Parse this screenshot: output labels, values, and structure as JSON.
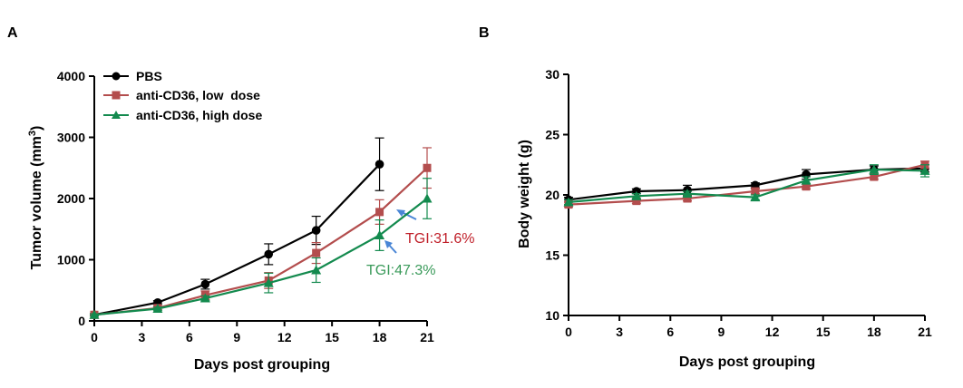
{
  "panels": [
    {
      "letter": "A",
      "xlabel": "Days post grouping",
      "ylabel": "Tumor volume (mm",
      "ylabel_sup": "3",
      "ylabel_close": ")",
      "legend": [
        {
          "label": "PBS"
        },
        {
          "label": "anti-CD36, low  dose"
        },
        {
          "label": "anti-CD36, high dose"
        }
      ],
      "annotations": [
        {
          "text": "TGI:31.6%",
          "color": "#c0202a"
        },
        {
          "text": "TGI:47.3%",
          "color": "#3a9a5a"
        }
      ]
    },
    {
      "letter": "B",
      "xlabel": "Days post grouping",
      "ylabel": "Body weight (g)"
    }
  ],
  "chart_data": [
    {
      "type": "line",
      "xlabel": "Days post grouping",
      "ylabel": "Tumor volume (mm3)",
      "xlim": [
        0,
        21
      ],
      "ylim": [
        0,
        4000
      ],
      "xticks": [
        0,
        3,
        6,
        9,
        12,
        15,
        18,
        21
      ],
      "yticks": [
        0,
        1000,
        2000,
        3000,
        4000
      ],
      "grid": false,
      "legend_position": "top-left",
      "series": [
        {
          "name": "PBS",
          "color": "#000000",
          "marker": "circle",
          "x": [
            0,
            4,
            7,
            11,
            14,
            18
          ],
          "y": [
            100,
            300,
            600,
            1090,
            1480,
            2560
          ],
          "err": [
            20,
            30,
            80,
            170,
            230,
            430
          ]
        },
        {
          "name": "anti-CD36, low  dose",
          "color": "#b34d4d",
          "marker": "square",
          "x": [
            0,
            4,
            7,
            11,
            14,
            18,
            21
          ],
          "y": [
            100,
            210,
            420,
            660,
            1110,
            1780,
            2500
          ],
          "err": [
            15,
            30,
            70,
            130,
            170,
            200,
            330
          ]
        },
        {
          "name": "anti-CD36, high dose",
          "color": "#138a4e",
          "marker": "triangle",
          "x": [
            0,
            4,
            7,
            11,
            14,
            18,
            21
          ],
          "y": [
            100,
            200,
            370,
            620,
            830,
            1400,
            2000
          ],
          "err": [
            15,
            25,
            40,
            160,
            200,
            250,
            330
          ]
        }
      ],
      "annotations": [
        {
          "text": "TGI:31.6%",
          "color": "#c0202a"
        },
        {
          "text": "TGI:47.3%",
          "color": "#3a9a5a"
        }
      ]
    },
    {
      "type": "line",
      "xlabel": "Days post grouping",
      "ylabel": "Body weight (g)",
      "xlim": [
        0,
        21
      ],
      "ylim": [
        10,
        30
      ],
      "xticks": [
        0,
        3,
        6,
        9,
        12,
        15,
        18,
        21
      ],
      "yticks": [
        10,
        15,
        20,
        25,
        30
      ],
      "grid": false,
      "series": [
        {
          "name": "PBS",
          "color": "#000000",
          "marker": "circle",
          "x": [
            0,
            4,
            7,
            11,
            14,
            18,
            21
          ],
          "y": [
            19.6,
            20.3,
            20.4,
            20.8,
            21.7,
            22.1,
            22.2
          ],
          "err": [
            0.2,
            0.2,
            0.4,
            0.2,
            0.4,
            0.3,
            0.3
          ]
        },
        {
          "name": "anti-CD36, low  dose",
          "color": "#b34d4d",
          "marker": "square",
          "x": [
            0,
            4,
            7,
            11,
            14,
            18,
            21
          ],
          "y": [
            19.2,
            19.5,
            19.7,
            20.3,
            20.7,
            21.5,
            22.5
          ],
          "err": [
            0.2,
            0.2,
            0.2,
            0.2,
            0.2,
            0.2,
            0.3
          ]
        },
        {
          "name": "anti-CD36, high dose",
          "color": "#138a4e",
          "marker": "triangle",
          "x": [
            0,
            4,
            7,
            11,
            14,
            18,
            21
          ],
          "y": [
            19.4,
            19.9,
            20.1,
            19.8,
            21.2,
            22.1,
            22.0
          ],
          "err": [
            0.2,
            0.2,
            0.2,
            0.2,
            0.3,
            0.4,
            0.5
          ]
        }
      ]
    }
  ]
}
